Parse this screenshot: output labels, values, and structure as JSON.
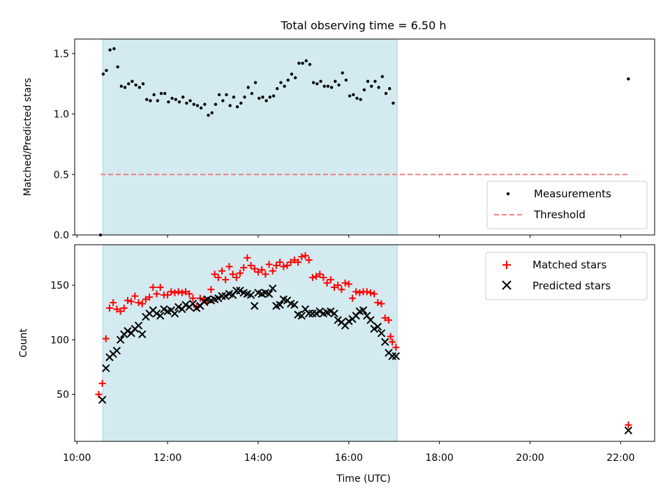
{
  "chart_data": [
    {
      "type": "scatter",
      "title": "Total observing time = 6.50 h",
      "xlabel": "",
      "ylabel": "Matched/Predicted stars",
      "xlim": [
        9.95,
        22.75
      ],
      "ylim": [
        0.0,
        1.62
      ],
      "yticks": [
        0.0,
        0.5,
        1.0,
        1.5
      ],
      "ytick_labels": [
        "0.0",
        "0.5",
        "1.0",
        "1.5"
      ],
      "shaded_span": [
        10.57,
        17.07
      ],
      "shaded_color": "#d3eaf0",
      "legend_position": "lower right",
      "series": [
        {
          "name": "Measurements",
          "marker": "dot",
          "color": "#000000",
          "points": [
            [
              10.52,
              0.0
            ],
            [
              10.58,
              1.33
            ],
            [
              10.65,
              1.36
            ],
            [
              10.73,
              1.53
            ],
            [
              10.82,
              1.54
            ],
            [
              10.9,
              1.39
            ],
            [
              10.98,
              1.23
            ],
            [
              11.06,
              1.22
            ],
            [
              11.14,
              1.25
            ],
            [
              11.22,
              1.27
            ],
            [
              11.3,
              1.24
            ],
            [
              11.38,
              1.22
            ],
            [
              11.46,
              1.25
            ],
            [
              11.54,
              1.12
            ],
            [
              11.62,
              1.11
            ],
            [
              11.7,
              1.16
            ],
            [
              11.78,
              1.11
            ],
            [
              11.86,
              1.17
            ],
            [
              11.94,
              1.17
            ],
            [
              12.02,
              1.1
            ],
            [
              12.1,
              1.13
            ],
            [
              12.18,
              1.12
            ],
            [
              12.26,
              1.1
            ],
            [
              12.34,
              1.14
            ],
            [
              12.42,
              1.09
            ],
            [
              12.5,
              1.11
            ],
            [
              12.58,
              1.08
            ],
            [
              12.66,
              1.07
            ],
            [
              12.74,
              1.05
            ],
            [
              12.82,
              1.08
            ],
            [
              12.9,
              0.99
            ],
            [
              12.98,
              1.01
            ],
            [
              13.06,
              1.08
            ],
            [
              13.14,
              1.16
            ],
            [
              13.22,
              1.11
            ],
            [
              13.3,
              1.16
            ],
            [
              13.38,
              1.07
            ],
            [
              13.46,
              1.14
            ],
            [
              13.54,
              1.06
            ],
            [
              13.62,
              1.09
            ],
            [
              13.7,
              1.14
            ],
            [
              13.78,
              1.22
            ],
            [
              13.86,
              1.17
            ],
            [
              13.94,
              1.26
            ],
            [
              14.02,
              1.13
            ],
            [
              14.1,
              1.14
            ],
            [
              14.18,
              1.11
            ],
            [
              14.26,
              1.14
            ],
            [
              14.34,
              1.15
            ],
            [
              14.42,
              1.21
            ],
            [
              14.5,
              1.26
            ],
            [
              14.58,
              1.23
            ],
            [
              14.66,
              1.28
            ],
            [
              14.74,
              1.33
            ],
            [
              14.82,
              1.3
            ],
            [
              14.9,
              1.42
            ],
            [
              14.98,
              1.42
            ],
            [
              15.06,
              1.44
            ],
            [
              15.14,
              1.41
            ],
            [
              15.22,
              1.26
            ],
            [
              15.3,
              1.25
            ],
            [
              15.38,
              1.27
            ],
            [
              15.46,
              1.23
            ],
            [
              15.54,
              1.23
            ],
            [
              15.62,
              1.22
            ],
            [
              15.7,
              1.27
            ],
            [
              15.78,
              1.24
            ],
            [
              15.86,
              1.34
            ],
            [
              15.94,
              1.28
            ],
            [
              16.02,
              1.15
            ],
            [
              16.1,
              1.16
            ],
            [
              16.18,
              1.13
            ],
            [
              16.26,
              1.12
            ],
            [
              16.34,
              1.2
            ],
            [
              16.42,
              1.27
            ],
            [
              16.5,
              1.23
            ],
            [
              16.58,
              1.27
            ],
            [
              16.66,
              1.22
            ],
            [
              16.74,
              1.31
            ],
            [
              16.82,
              1.17
            ],
            [
              16.9,
              1.21
            ],
            [
              16.98,
              1.09
            ],
            [
              22.17,
              1.29
            ]
          ]
        },
        {
          "name": "Threshold",
          "marker": "dashed-line",
          "color": "#f08080",
          "points": [
            [
              10.52,
              0.5
            ],
            [
              22.17,
              0.5
            ]
          ]
        }
      ]
    },
    {
      "type": "scatter",
      "title": "",
      "xlabel": "Time (UTC)",
      "ylabel": "Count",
      "xlim": [
        9.95,
        22.75
      ],
      "ylim": [
        7,
        187
      ],
      "yticks": [
        50,
        100,
        150
      ],
      "ytick_labels": [
        "50",
        "100",
        "150"
      ],
      "xticks": [
        10,
        12,
        14,
        16,
        18,
        20,
        22
      ],
      "xtick_labels": [
        "10:00",
        "12:00",
        "14:00",
        "16:00",
        "18:00",
        "20:00",
        "22:00"
      ],
      "shaded_span": [
        10.57,
        17.07
      ],
      "shaded_color": "#d3eaf0",
      "legend_position": "upper right",
      "series": [
        {
          "name": "Matched stars",
          "marker": "plus",
          "color": "#ff0000",
          "points": [
            [
              10.48,
              50
            ],
            [
              10.56,
              60
            ],
            [
              10.64,
              101
            ],
            [
              10.72,
              129
            ],
            [
              10.8,
              134
            ],
            [
              10.88,
              128
            ],
            [
              10.96,
              126
            ],
            [
              11.04,
              129
            ],
            [
              11.12,
              136
            ],
            [
              11.2,
              135
            ],
            [
              11.28,
              140
            ],
            [
              11.36,
              134
            ],
            [
              11.44,
              133
            ],
            [
              11.52,
              137
            ],
            [
              11.6,
              139
            ],
            [
              11.68,
              148
            ],
            [
              11.76,
              142
            ],
            [
              11.84,
              148
            ],
            [
              11.92,
              141
            ],
            [
              12.0,
              141
            ],
            [
              12.08,
              144
            ],
            [
              12.16,
              143
            ],
            [
              12.24,
              144
            ],
            [
              12.32,
              143
            ],
            [
              12.4,
              144
            ],
            [
              12.48,
              142
            ],
            [
              12.56,
              138
            ],
            [
              12.64,
              130
            ],
            [
              12.72,
              138
            ],
            [
              12.8,
              137
            ],
            [
              12.88,
              134
            ],
            [
              12.96,
              146
            ],
            [
              13.04,
              160
            ],
            [
              13.12,
              157
            ],
            [
              13.2,
              163
            ],
            [
              13.28,
              155
            ],
            [
              13.36,
              167
            ],
            [
              13.44,
              160
            ],
            [
              13.52,
              157
            ],
            [
              13.6,
              161
            ],
            [
              13.68,
              166
            ],
            [
              13.76,
              175
            ],
            [
              13.84,
              168
            ],
            [
              13.92,
              165
            ],
            [
              14.0,
              162
            ],
            [
              14.08,
              164
            ],
            [
              14.16,
              160
            ],
            [
              14.24,
              169
            ],
            [
              14.32,
              163
            ],
            [
              14.4,
              168
            ],
            [
              14.48,
              171
            ],
            [
              14.56,
              167
            ],
            [
              14.64,
              168
            ],
            [
              14.72,
              171
            ],
            [
              14.8,
              173
            ],
            [
              14.88,
              171
            ],
            [
              14.96,
              176
            ],
            [
              15.04,
              177
            ],
            [
              15.12,
              173
            ],
            [
              15.2,
              157
            ],
            [
              15.28,
              158
            ],
            [
              15.36,
              160
            ],
            [
              15.44,
              157
            ],
            [
              15.52,
              152
            ],
            [
              15.6,
              155
            ],
            [
              15.68,
              148
            ],
            [
              15.76,
              150
            ],
            [
              15.84,
              146
            ],
            [
              15.92,
              152
            ],
            [
              16.0,
              151
            ],
            [
              16.08,
              138
            ],
            [
              16.16,
              144
            ],
            [
              16.24,
              143
            ],
            [
              16.32,
              144
            ],
            [
              16.4,
              144
            ],
            [
              16.48,
              143
            ],
            [
              16.56,
              142
            ],
            [
              16.64,
              134
            ],
            [
              16.72,
              133
            ],
            [
              16.8,
              120
            ],
            [
              16.88,
              118
            ],
            [
              16.96,
              98
            ],
            [
              17.04,
              93
            ],
            [
              16.92,
              103
            ],
            [
              22.17,
              22
            ]
          ]
        },
        {
          "name": "Predicted stars",
          "marker": "x",
          "color": "#000000",
          "points": [
            [
              10.56,
              45
            ],
            [
              10.64,
              74
            ],
            [
              10.72,
              84
            ],
            [
              10.8,
              87
            ],
            [
              10.88,
              90
            ],
            [
              10.96,
              100
            ],
            [
              11.04,
              105
            ],
            [
              11.12,
              108
            ],
            [
              11.2,
              106
            ],
            [
              11.28,
              110
            ],
            [
              11.36,
              113
            ],
            [
              11.44,
              105
            ],
            [
              11.52,
              121
            ],
            [
              11.6,
              124
            ],
            [
              11.68,
              127
            ],
            [
              11.76,
              124
            ],
            [
              11.84,
              122
            ],
            [
              11.92,
              128
            ],
            [
              12.0,
              126
            ],
            [
              12.08,
              127
            ],
            [
              12.16,
              124
            ],
            [
              12.24,
              130
            ],
            [
              12.32,
              128
            ],
            [
              12.4,
              132
            ],
            [
              12.48,
              130
            ],
            [
              12.56,
              133
            ],
            [
              12.64,
              129
            ],
            [
              12.72,
              131
            ],
            [
              12.8,
              135
            ],
            [
              12.88,
              137
            ],
            [
              12.96,
              136
            ],
            [
              13.04,
              137
            ],
            [
              13.12,
              138
            ],
            [
              13.2,
              140
            ],
            [
              13.28,
              140
            ],
            [
              13.36,
              142
            ],
            [
              13.44,
              141
            ],
            [
              13.52,
              145
            ],
            [
              13.6,
              145
            ],
            [
              13.68,
              143
            ],
            [
              13.76,
              142
            ],
            [
              13.84,
              141
            ],
            [
              13.92,
              131
            ],
            [
              14.0,
              143
            ],
            [
              14.08,
              142
            ],
            [
              14.16,
              143
            ],
            [
              14.24,
              142
            ],
            [
              14.32,
              147
            ],
            [
              14.4,
              131
            ],
            [
              14.48,
              132
            ],
            [
              14.56,
              137
            ],
            [
              14.64,
              136
            ],
            [
              14.72,
              133
            ],
            [
              14.8,
              132
            ],
            [
              14.88,
              123
            ],
            [
              14.96,
              122
            ],
            [
              15.04,
              128
            ],
            [
              15.12,
              124
            ],
            [
              15.2,
              124
            ],
            [
              15.28,
              124
            ],
            [
              15.36,
              126
            ],
            [
              15.44,
              124
            ],
            [
              15.52,
              125
            ],
            [
              15.6,
              126
            ],
            [
              15.68,
              124
            ],
            [
              15.76,
              118
            ],
            [
              15.84,
              116
            ],
            [
              15.92,
              113
            ],
            [
              16.0,
              117
            ],
            [
              16.08,
              119
            ],
            [
              16.16,
              122
            ],
            [
              16.24,
              126
            ],
            [
              16.32,
              127
            ],
            [
              16.4,
              122
            ],
            [
              16.48,
              118
            ],
            [
              16.56,
              110
            ],
            [
              16.64,
              112
            ],
            [
              16.72,
              106
            ],
            [
              16.8,
              98
            ],
            [
              16.88,
              88
            ],
            [
              16.96,
              85
            ],
            [
              17.04,
              85
            ],
            [
              22.17,
              17
            ]
          ]
        }
      ]
    }
  ]
}
